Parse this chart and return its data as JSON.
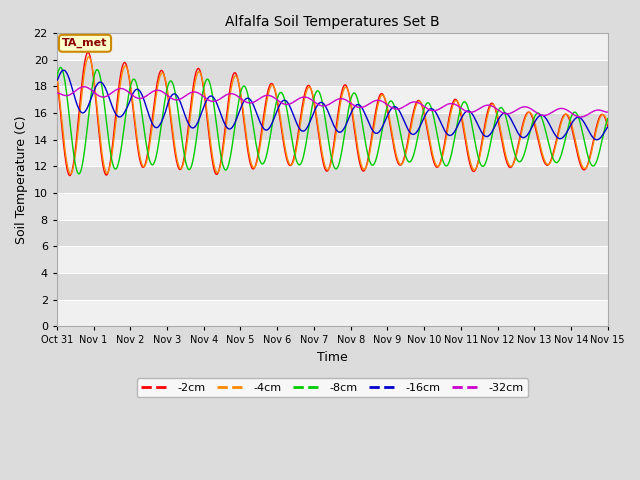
{
  "title": "Alfalfa Soil Temperatures Set B",
  "xlabel": "Time",
  "ylabel": "Soil Temperature (C)",
  "xlim": [
    0,
    15
  ],
  "ylim": [
    0,
    22
  ],
  "yticks": [
    0,
    2,
    4,
    6,
    8,
    10,
    12,
    14,
    16,
    18,
    20,
    22
  ],
  "xtick_labels": [
    "Oct 31",
    "Nov 1",
    "Nov 2",
    "Nov 3",
    "Nov 4",
    "Nov 5",
    "Nov 6",
    "Nov 7",
    "Nov 8",
    "Nov 9",
    "Nov 10",
    "Nov 11",
    "Nov 12",
    "Nov 13",
    "Nov 14",
    "Nov 15"
  ],
  "xtick_positions": [
    0,
    1,
    2,
    3,
    4,
    5,
    6,
    7,
    8,
    9,
    10,
    11,
    12,
    13,
    14,
    15
  ],
  "series": {
    "-2cm": {
      "color": "#FF0000",
      "linewidth": 1.0
    },
    "-4cm": {
      "color": "#FF8800",
      "linewidth": 1.0
    },
    "-8cm": {
      "color": "#00CC00",
      "linewidth": 1.0
    },
    "-16cm": {
      "color": "#0000CC",
      "linewidth": 1.0
    },
    "-32cm": {
      "color": "#CC00CC",
      "linewidth": 1.0
    }
  },
  "legend_label": "TA_met",
  "legend_bg": "#FFFFCC",
  "legend_border": "#CC8800",
  "bg_color": "#DCDCDC",
  "plot_bg_light": "#F0F0F0",
  "plot_bg_dark": "#DCDCDC",
  "band_colors": [
    "#F0F0F0",
    "#DCDCDC"
  ]
}
